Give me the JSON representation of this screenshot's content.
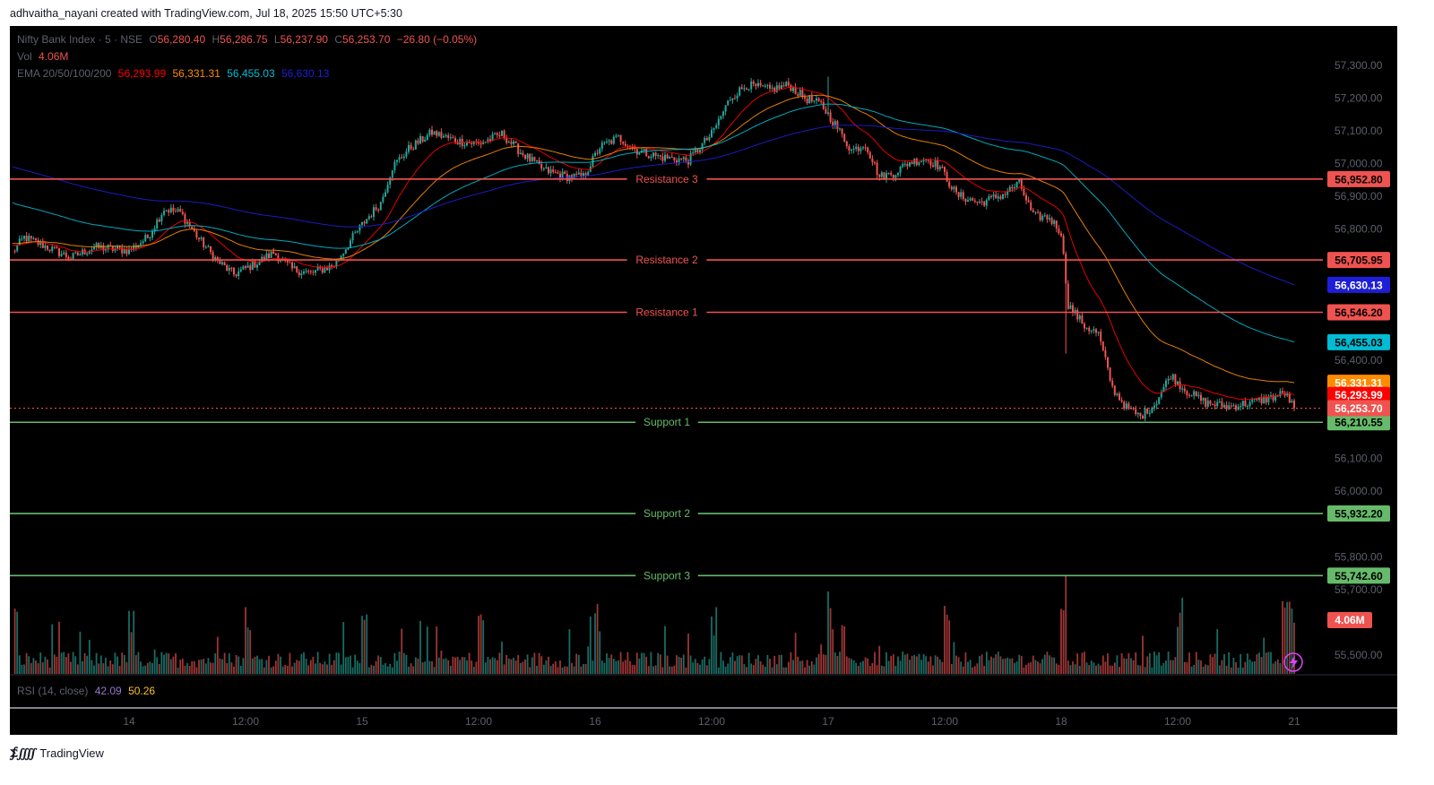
{
  "header": {
    "attribution": "adhvaitha_nayani created with TradingView.com, Jul 18, 2025 15:50 UTC+5:30"
  },
  "legend": {
    "symbol": "Nifty Bank Index · 5 · NSE",
    "ohlc": {
      "o_prefix": "O",
      "o": "56,280.40",
      "h_prefix": "H",
      "h": "56,286.75",
      "l_prefix": "L",
      "l": "56,237.90",
      "c_prefix": "C",
      "c": "56,253.70",
      "change": "−26.80 (−0.05%)"
    },
    "vol_label": "Vol",
    "vol_value": "4.06M",
    "ema_label": "EMA 20/50/100/200",
    "ema_values": [
      "56,293.99",
      "56,331.31",
      "56,455.03",
      "56,630.13"
    ],
    "rsi_label": "RSI (14, close)",
    "rsi_values": [
      "42.09",
      "50.26"
    ]
  },
  "colors": {
    "up": "#26a69a",
    "down": "#ef5350",
    "background": "#000000",
    "ema20": "#ff0000",
    "ema50": "#ff8c00",
    "ema100": "#00bcd4",
    "ema200": "#1e1ed8",
    "resistance": "#ef5350",
    "support": "#66bb6a",
    "axis_text": "#5d606b",
    "rsi_value1": "#9575cd",
    "rsi_value2": "#fbc02d"
  },
  "chart_data": {
    "type": "candlestick",
    "symbol": "Nifty Bank Index",
    "interval": "5",
    "exchange": "NSE",
    "y_ticks": [
      57300,
      57200,
      57100,
      57000,
      56900,
      56800,
      56400,
      56100,
      56000,
      55800,
      55700,
      55500
    ],
    "y_tick_labels": [
      "57,300.00",
      "57,200.00",
      "57,100.00",
      "57,000.00",
      "56,900.00",
      "56,800.00",
      "56,400.00",
      "56,100.00",
      "56,000.00",
      "55,800.00",
      "55,700.00",
      "55,500.00"
    ],
    "ylim": [
      55440,
      57420
    ],
    "x_tick_labels": [
      "14",
      "12:00",
      "15",
      "12:00",
      "16",
      "12:00",
      "17",
      "12:00",
      "18",
      "12:00",
      "21"
    ],
    "x_ticks_at_candle_index": [
      50,
      100,
      150,
      200,
      250,
      300,
      350,
      400,
      450,
      500,
      550
    ],
    "num_candles": 550,
    "close_anchors": [
      {
        "i": 0,
        "c": 56730
      },
      {
        "i": 5,
        "c": 56775
      },
      {
        "i": 15,
        "c": 56745
      },
      {
        "i": 25,
        "c": 56712
      },
      {
        "i": 35,
        "c": 56745
      },
      {
        "i": 50,
        "c": 56735
      },
      {
        "i": 58,
        "c": 56775
      },
      {
        "i": 65,
        "c": 56862
      },
      {
        "i": 72,
        "c": 56850
      },
      {
        "i": 80,
        "c": 56770
      },
      {
        "i": 88,
        "c": 56702
      },
      {
        "i": 95,
        "c": 56662
      },
      {
        "i": 105,
        "c": 56698
      },
      {
        "i": 112,
        "c": 56728
      },
      {
        "i": 120,
        "c": 56678
      },
      {
        "i": 128,
        "c": 56665
      },
      {
        "i": 138,
        "c": 56690
      },
      {
        "i": 146,
        "c": 56775
      },
      {
        "i": 152,
        "c": 56832
      },
      {
        "i": 158,
        "c": 56880
      },
      {
        "i": 163,
        "c": 56990
      },
      {
        "i": 170,
        "c": 57045
      },
      {
        "i": 180,
        "c": 57095
      },
      {
        "i": 190,
        "c": 57070
      },
      {
        "i": 200,
        "c": 57060
      },
      {
        "i": 210,
        "c": 57090
      },
      {
        "i": 218,
        "c": 57035
      },
      {
        "i": 228,
        "c": 56980
      },
      {
        "i": 238,
        "c": 56960
      },
      {
        "i": 245,
        "c": 56960
      },
      {
        "i": 252,
        "c": 57050
      },
      {
        "i": 260,
        "c": 57080
      },
      {
        "i": 268,
        "c": 57040
      },
      {
        "i": 278,
        "c": 57020
      },
      {
        "i": 290,
        "c": 57010
      },
      {
        "i": 300,
        "c": 57090
      },
      {
        "i": 308,
        "c": 57200
      },
      {
        "i": 315,
        "c": 57240
      },
      {
        "i": 325,
        "c": 57225
      },
      {
        "i": 333,
        "c": 57240
      },
      {
        "i": 340,
        "c": 57200
      },
      {
        "i": 347,
        "c": 57180
      },
      {
        "i": 353,
        "c": 57120
      },
      {
        "i": 360,
        "c": 57040
      },
      {
        "i": 366,
        "c": 57060
      },
      {
        "i": 372,
        "c": 56960
      },
      {
        "i": 378,
        "c": 56970
      },
      {
        "i": 385,
        "c": 57005
      },
      {
        "i": 392,
        "c": 57015
      },
      {
        "i": 398,
        "c": 56990
      },
      {
        "i": 405,
        "c": 56905
      },
      {
        "i": 415,
        "c": 56880
      },
      {
        "i": 425,
        "c": 56905
      },
      {
        "i": 432,
        "c": 56940
      },
      {
        "i": 438,
        "c": 56840
      },
      {
        "i": 445,
        "c": 56835
      },
      {
        "i": 450,
        "c": 56790
      },
      {
        "i": 453,
        "c": 56570
      },
      {
        "i": 460,
        "c": 56505
      },
      {
        "i": 466,
        "c": 56480
      },
      {
        "i": 472,
        "c": 56315
      },
      {
        "i": 478,
        "c": 56255
      },
      {
        "i": 484,
        "c": 56228
      },
      {
        "i": 490,
        "c": 56265
      },
      {
        "i": 497,
        "c": 56355
      },
      {
        "i": 503,
        "c": 56310
      },
      {
        "i": 512,
        "c": 56270
      },
      {
        "i": 522,
        "c": 56258
      },
      {
        "i": 532,
        "c": 56272
      },
      {
        "i": 540,
        "c": 56285
      },
      {
        "i": 546,
        "c": 56300
      },
      {
        "i": 550,
        "c": 56253.7
      }
    ],
    "volume_scale_max": 5.5,
    "volume_unit": "M",
    "ema_last_values": {
      "ema20": 56293.99,
      "ema50": 56331.31,
      "ema100": 56455.03,
      "ema200": 56630.13
    },
    "ema_start_values": {
      "ema20": 56750,
      "ema50": 56760,
      "ema100": 56880,
      "ema200": 56990
    },
    "last_close": 56253.7,
    "last_volume": "4.06M",
    "levels": [
      {
        "name": "Resistance 3",
        "value": 56952.8,
        "label": "56,952.80",
        "kind": "resistance"
      },
      {
        "name": "Resistance 2",
        "value": 56705.95,
        "label": "56,705.95",
        "kind": "resistance"
      },
      {
        "name": "Resistance 1",
        "value": 56546.2,
        "label": "56,546.20",
        "kind": "resistance"
      },
      {
        "name": "Support 1",
        "value": 56210.55,
        "label": "56,210.55",
        "kind": "support"
      },
      {
        "name": "Support 2",
        "value": 55932.2,
        "label": "55,932.20",
        "kind": "support"
      },
      {
        "name": "Support 3",
        "value": 55742.6,
        "label": "55,742.60",
        "kind": "support"
      }
    ],
    "price_badges": [
      {
        "value": 56630.13,
        "label": "56,630.13",
        "color": "#1e1ed8"
      },
      {
        "value": 56455.03,
        "label": "56,455.03",
        "color": "#00bcd4"
      },
      {
        "value": 56331.31,
        "label": "56,331.31",
        "color": "#ff8c00"
      },
      {
        "value": 56293.99,
        "label": "56,293.99",
        "color": "#ff0000"
      },
      {
        "value": 56253.7,
        "label": "56,253.70",
        "color": "#ef5350"
      }
    ]
  },
  "footer": {
    "brand": "TradingView"
  }
}
